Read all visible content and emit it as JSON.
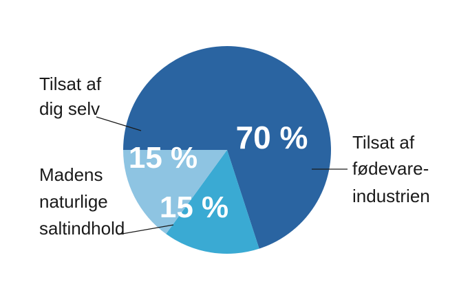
{
  "chart_data": {
    "type": "pie",
    "title": "",
    "start_angle_deg": 180,
    "direction": "counterclockwise",
    "slices": [
      {
        "name": "Tilsat af fødevareindustrien",
        "value": 70,
        "value_label": "70 %",
        "label_lines": [
          "Tilsat af",
          "fødevare-",
          "industrien"
        ],
        "color": "#2a64a1",
        "label_side": "right"
      },
      {
        "name": "Tilsat af dig selv",
        "value": 15,
        "value_label": "15 %",
        "label_lines": [
          "Tilsat af",
          "dig selv"
        ],
        "color": "#3aaad3",
        "label_side": "upper-left"
      },
      {
        "name": "Madens naturlige saltindhold",
        "value": 15,
        "value_label": "15 %",
        "label_lines": [
          "Madens",
          "naturlige",
          "saltindhold"
        ],
        "color": "#8ec4e2",
        "label_side": "lower-left"
      }
    ]
  }
}
